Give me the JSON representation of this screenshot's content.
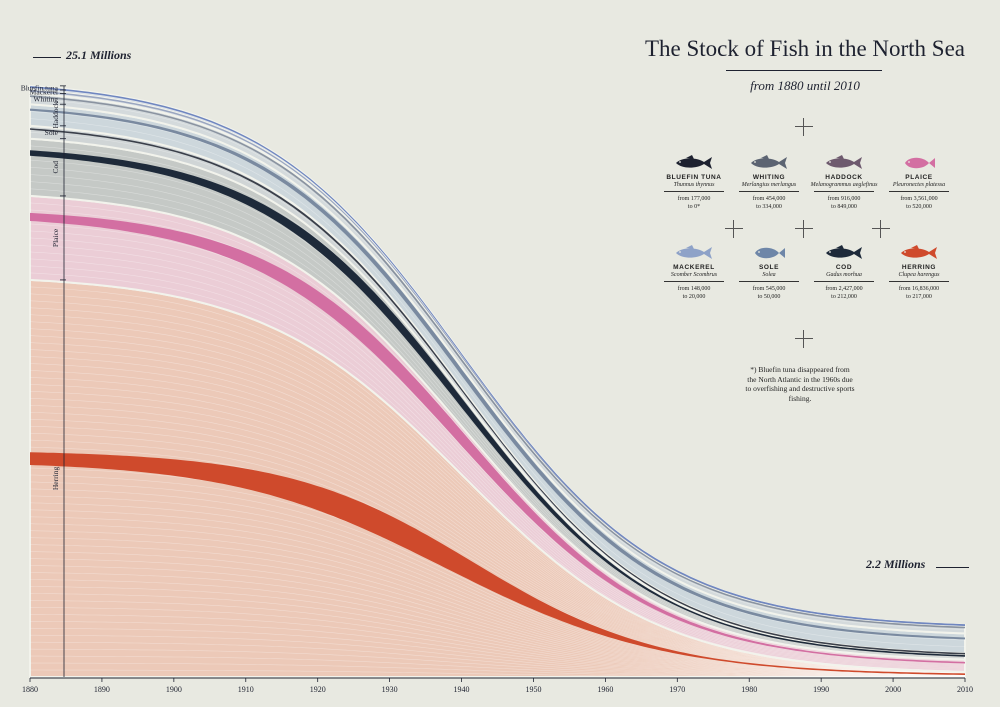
{
  "header": {
    "title": "The Stock of Fish in the North Sea",
    "subtitle": "from 1880 until 2010"
  },
  "axis_labels": {
    "max": "25.1 Millions",
    "min": "2.2 Millions"
  },
  "note": "*) Bluefin tuna disappeared from the North Atlantic in the 1960s due to overfishing and destructive sports fishing.",
  "legend": [
    {
      "key": "bluefin",
      "name": "BLUEFIN TUNA",
      "latin": "Thunnus thynnus",
      "from": "from 177,000",
      "to": "to 0*",
      "color": "#1e2230",
      "icon": "tuna-icon"
    },
    {
      "key": "whiting",
      "name": "WHITING",
      "latin": "Merlangius merlangus",
      "from": "from 454,000",
      "to": "to 334,000",
      "color": "#5c6472",
      "icon": "whiting-icon"
    },
    {
      "key": "haddock",
      "name": "HADDOCK",
      "latin": "Melanogrammus aeglefinus",
      "from": "from 916,000",
      "to": "to 849,000",
      "color": "#6e5a6e",
      "icon": "haddock-icon"
    },
    {
      "key": "plaice",
      "name": "PLAICE",
      "latin": "Pleuronectes platessa",
      "from": "from 3,561,000",
      "to": "to 520,000",
      "color": "#d36fa2",
      "icon": "plaice-icon"
    },
    {
      "key": "mackerel",
      "name": "MACKEREL",
      "latin": "Scomber Scombrus",
      "from": "from 148,000",
      "to": "to 20,000",
      "color": "#8ea2c8",
      "icon": "mackerel-icon"
    },
    {
      "key": "sole",
      "name": "SOLE",
      "latin": "Solea",
      "from": "from 545,000",
      "to": "to 50,000",
      "color": "#6e86a8",
      "icon": "sole-icon"
    },
    {
      "key": "cod",
      "name": "COD",
      "latin": "Gadus morhua",
      "from": "from 2,427,000",
      "to": "to 212,000",
      "color": "#1e2a3a",
      "icon": "cod-icon"
    },
    {
      "key": "herring",
      "name": "HERRING",
      "latin": "Clupea harengus",
      "from": "from 16,836,000",
      "to": "to 217,000",
      "color": "#cf4a2c",
      "icon": "herring-icon"
    }
  ],
  "chart_data": {
    "type": "area",
    "x_ticks": [
      "1880",
      "1890",
      "1900",
      "1910",
      "1920",
      "1930",
      "1940",
      "1950",
      "1960",
      "1970",
      "1980",
      "1990",
      "2000",
      "2010"
    ],
    "xlim": [
      1880,
      2010
    ],
    "ylim": [
      0,
      25.1
    ],
    "y_unit": "Millions",
    "series": [
      {
        "name": "Herring",
        "start": 16.836,
        "end": 0.217,
        "band_color": "#ecc9b8",
        "accent_color": "#cf4a2c"
      },
      {
        "name": "Plaice",
        "start": 3.561,
        "end": 0.52,
        "band_color": "#ebcdd6",
        "accent_color": "#d36fa2"
      },
      {
        "name": "Cod",
        "start": 2.427,
        "end": 0.212,
        "band_color": "#c5c9c6",
        "accent_color": "#1e2a3a"
      },
      {
        "name": "Sole",
        "start": 0.545,
        "end": 0.05,
        "band_color": "#d0d5d6",
        "accent_color": "#3a3f4a"
      },
      {
        "name": "Haddock",
        "start": 0.916,
        "end": 0.849,
        "band_color": "#cdd7dc",
        "accent_color": "#7a8aa0"
      },
      {
        "name": "Whiting",
        "start": 0.454,
        "end": 0.334,
        "band_color": "#d4dadc",
        "accent_color": "#8a93a0"
      },
      {
        "name": "Mackerel",
        "start": 0.148,
        "end": 0.02,
        "band_color": "#d8dde0",
        "accent_color": "#9aa6c0"
      },
      {
        "name": "Bluefin tuna",
        "start": 0.177,
        "end": 0.0,
        "band_color": "#d6dde4",
        "accent_color": "#6f86c0"
      }
    ]
  }
}
